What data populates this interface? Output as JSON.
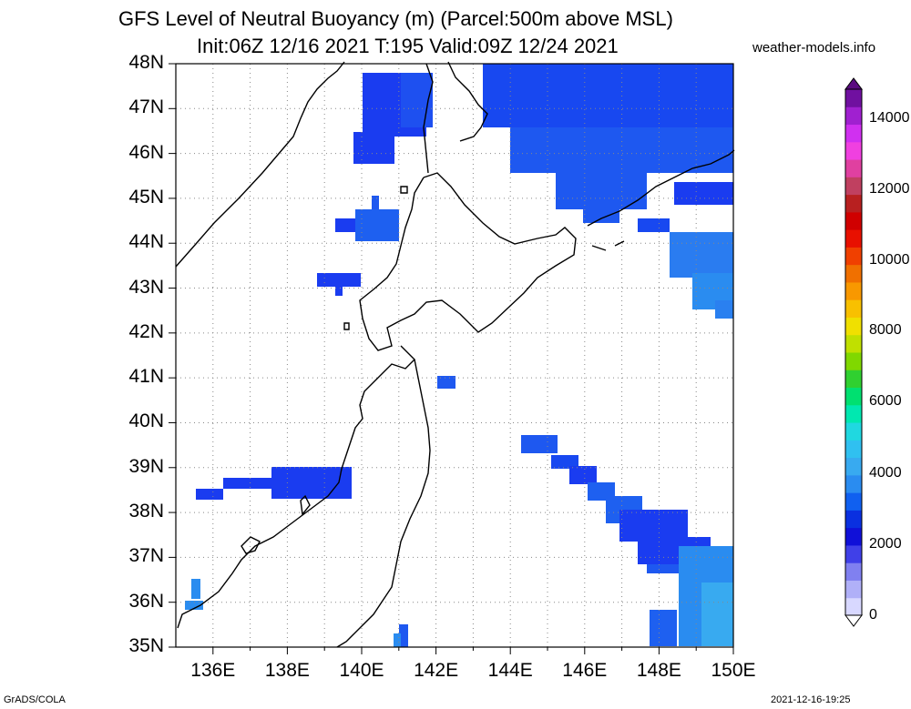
{
  "title_line1": "GFS Level of Neutral Buoyancy (m) (Parcel:500m above MSL)",
  "title_line2": "Init:06Z 12/16 2021 T:195 Valid:09Z 12/24 2021",
  "credit": "weather-models.info",
  "footer_left": "GrADS/COLA",
  "footer_right": "2021-12-16-19:25",
  "map": {
    "lon_range": [
      135,
      150
    ],
    "lat_range": [
      35,
      48
    ],
    "lat_labels": [
      "48N",
      "47N",
      "46N",
      "45N",
      "44N",
      "43N",
      "42N",
      "41N",
      "40N",
      "39N",
      "38N",
      "37N",
      "36N",
      "35N"
    ],
    "lon_labels": [
      "136E",
      "138E",
      "140E",
      "142E",
      "144E",
      "146E",
      "148E",
      "150E"
    ]
  },
  "colorbar": {
    "labels": [
      "14000",
      "12000",
      "10000",
      "8000",
      "6000",
      "4000",
      "2000",
      "0"
    ],
    "colors": [
      "#d8d8ff",
      "#b0b0f8",
      "#8080f0",
      "#4040e8",
      "#1010d8",
      "#0a30e0",
      "#1060f0",
      "#2a8cf0",
      "#38aaf0",
      "#30c0f0",
      "#20d8e0",
      "#00e8b0",
      "#00e070",
      "#30d030",
      "#80d800",
      "#c0e000",
      "#f0e000",
      "#f8c000",
      "#f89800",
      "#f07000",
      "#f04000",
      "#e81000",
      "#d00000",
      "#b82020",
      "#c04060",
      "#e040a0",
      "#f040e0",
      "#d030f0",
      "#a020d0",
      "#7010a0"
    ]
  }
}
